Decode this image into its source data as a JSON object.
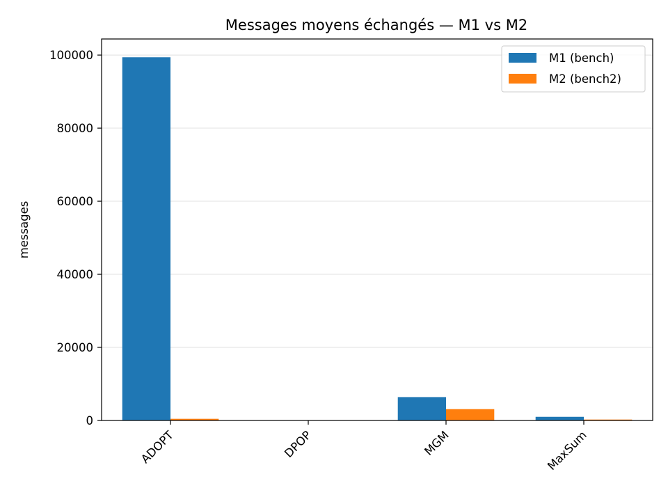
{
  "chart_data": {
    "type": "bar",
    "title": "Messages moyens échangés — M1 vs M2",
    "xlabel": "",
    "ylabel": "messages",
    "categories": [
      "ADOPT",
      "DPOP",
      "MGM",
      "MaxSum"
    ],
    "series": [
      {
        "name": "M1 (bench)",
        "color": "#1f77b4",
        "values": [
          99400,
          0,
          6400,
          1000
        ]
      },
      {
        "name": "M2 (bench2)",
        "color": "#ff7f0e",
        "values": [
          450,
          0,
          3100,
          250
        ]
      }
    ],
    "ylim": [
      0,
      104400
    ],
    "yticks": [
      0,
      20000,
      40000,
      60000,
      80000,
      100000
    ],
    "grid": "y",
    "legend": "top-right"
  }
}
